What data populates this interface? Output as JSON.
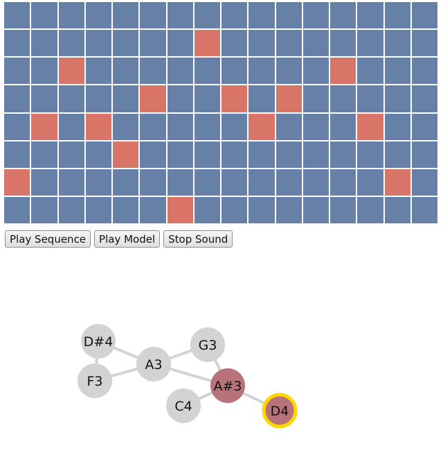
{
  "colors": {
    "cell_off": "#6680a8",
    "cell_on": "#d97468",
    "node_default": "#d3d3d3",
    "node_active": "#b8727a",
    "node_highlight_ring": "#ffd700",
    "edge": "#d3d3d3"
  },
  "sequencer": {
    "rows": 8,
    "cols": 16,
    "active": [
      [],
      [
        7
      ],
      [
        2,
        12
      ],
      [
        5,
        8,
        10
      ],
      [
        1,
        3,
        9,
        13
      ],
      [
        4
      ],
      [
        0,
        14
      ],
      [
        6
      ]
    ]
  },
  "controls": {
    "play_sequence": "Play Sequence",
    "play_model": "Play Model",
    "stop_sound": "Stop Sound"
  },
  "graph": {
    "nodes": [
      {
        "id": "D#4",
        "label": "D#4",
        "state": "default"
      },
      {
        "id": "F3",
        "label": "F3",
        "state": "default"
      },
      {
        "id": "A3",
        "label": "A3",
        "state": "default"
      },
      {
        "id": "G3",
        "label": "G3",
        "state": "default"
      },
      {
        "id": "A#3",
        "label": "A#3",
        "state": "active"
      },
      {
        "id": "C4",
        "label": "C4",
        "state": "default"
      },
      {
        "id": "D4",
        "label": "D4",
        "state": "current"
      }
    ],
    "edges": [
      [
        "D#4",
        "F3"
      ],
      [
        "D#4",
        "A3"
      ],
      [
        "F3",
        "A3"
      ],
      [
        "A3",
        "G3"
      ],
      [
        "A3",
        "A#3"
      ],
      [
        "G3",
        "A#3"
      ],
      [
        "C4",
        "A#3"
      ],
      [
        "A#3",
        "D4"
      ]
    ]
  }
}
